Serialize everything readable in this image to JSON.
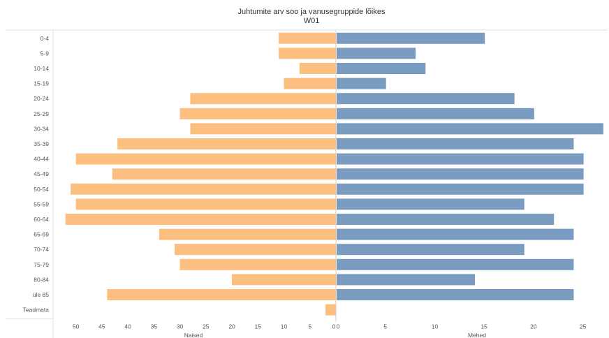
{
  "chart_data": {
    "type": "bar",
    "title": "Juhtumite arv soo ja vanusegruppide lõikes",
    "subtitle": "W01",
    "categories": [
      "0-4",
      "5-9",
      "10-14",
      "15-19",
      "20-24",
      "25-29",
      "30-34",
      "35-39",
      "40-44",
      "45-49",
      "50-54",
      "55-59",
      "60-64",
      "65-69",
      "70-74",
      "75-79",
      "80-84",
      "üle 85",
      "Teadmata"
    ],
    "series": [
      {
        "name": "Naised",
        "color": "#fcbf80",
        "values": [
          11,
          11,
          7,
          10,
          28,
          30,
          28,
          42,
          50,
          43,
          51,
          50,
          52,
          34,
          31,
          30,
          20,
          44,
          2
        ]
      },
      {
        "name": "Mehed",
        "color": "#7a9cc0",
        "values": [
          15,
          8,
          9,
          5,
          18,
          20,
          27,
          24,
          25,
          25,
          25,
          19,
          22,
          24,
          19,
          24,
          14,
          24,
          0
        ]
      }
    ],
    "left_axis": {
      "label": "Naised",
      "ticks": [
        50,
        45,
        40,
        35,
        30,
        25,
        20,
        15,
        10,
        5,
        0
      ],
      "range": [
        0,
        52.5
      ]
    },
    "right_axis": {
      "label": "Mehed",
      "ticks": [
        0,
        5,
        10,
        15,
        20,
        25
      ],
      "range": [
        0,
        27.5
      ]
    },
    "grid": false
  }
}
